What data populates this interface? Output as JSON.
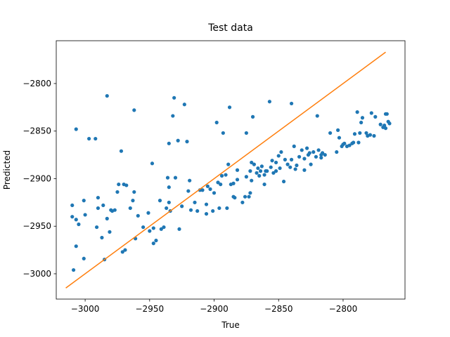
{
  "chart_data": {
    "type": "scatter",
    "title": "Test data",
    "xlabel": "True",
    "ylabel": "Predicted",
    "xlim": [
      -3022.4,
      -2752
    ],
    "ylim": [
      -3026.6,
      -2755
    ],
    "xticks": [
      {
        "value": -3000,
        "label": "−3000"
      },
      {
        "value": -2950,
        "label": "−2950"
      },
      {
        "value": -2900,
        "label": "−2900"
      },
      {
        "value": -2850,
        "label": "−2850"
      },
      {
        "value": -2800,
        "label": "−2800"
      }
    ],
    "yticks": [
      {
        "value": -3000,
        "label": "−3000"
      },
      {
        "value": -2950,
        "label": "−2950"
      },
      {
        "value": -2900,
        "label": "−2900"
      },
      {
        "value": -2850,
        "label": "−2850"
      },
      {
        "value": -2800,
        "label": "−2800"
      }
    ],
    "series": [
      {
        "type": "scatter",
        "color": "#1f77b4",
        "x": [
          -3010,
          -3010,
          -3009,
          -3007,
          -3007,
          -3007,
          -3005,
          -3001,
          -3001,
          -3000,
          -2997,
          -2992,
          -2991,
          -2990,
          -2990,
          -2987,
          -2986,
          -2985,
          -2983,
          -2983,
          -2981,
          -2980,
          -2979,
          -2977,
          -2975,
          -2974,
          -2972,
          -2971,
          -2970,
          -2969,
          -2968,
          -2965,
          -2963,
          -2962,
          -2962,
          -2961,
          -2959,
          -2955,
          -2951,
          -2950,
          -2948,
          -2947,
          -2947,
          -2945,
          -2942,
          -2941,
          -2939,
          -2937,
          -2936,
          -2935,
          -2935,
          -2935,
          -2934,
          -2932,
          -2931,
          -2930,
          -2928,
          -2927,
          -2925,
          -2923,
          -2921,
          -2920,
          -2919,
          -2918,
          -2915,
          -2913,
          -2911,
          -2909,
          -2906,
          -2906,
          -2905,
          -2903,
          -2901,
          -2900,
          -2898,
          -2897,
          -2896,
          -2895,
          -2894,
          -2893,
          -2891,
          -2890,
          -2889,
          -2888,
          -2887,
          -2885,
          -2885,
          -2884,
          -2882,
          -2882,
          -2878,
          -2876,
          -2875,
          -2875,
          -2873,
          -2872,
          -2872,
          -2871,
          -2871,
          -2870,
          -2869,
          -2867,
          -2866,
          -2865,
          -2864,
          -2863,
          -2861,
          -2861,
          -2860,
          -2859,
          -2857,
          -2856,
          -2855,
          -2854,
          -2852,
          -2852,
          -2850,
          -2849,
          -2848,
          -2846,
          -2845,
          -2843,
          -2841,
          -2840,
          -2840,
          -2838,
          -2837,
          -2836,
          -2834,
          -2832,
          -2830,
          -2830,
          -2828,
          -2827,
          -2826,
          -2825,
          -2823,
          -2821,
          -2820,
          -2819,
          -2817,
          -2817,
          -2816,
          -2814,
          -2810,
          -2805,
          -2804,
          -2803,
          -2801,
          -2800,
          -2799,
          -2797,
          -2795,
          -2793,
          -2792,
          -2791,
          -2789,
          -2788,
          -2787,
          -2786,
          -2785,
          -2782,
          -2781,
          -2779,
          -2778,
          -2776,
          -2775,
          -2771,
          -2769,
          -2768,
          -2767,
          -2767,
          -2766,
          -2765,
          -2764
        ],
        "y": [
          -2928,
          -2940,
          -2996,
          -2848,
          -2971,
          -2943,
          -2948,
          -2923,
          -2984,
          -2938,
          -2858,
          -2858,
          -2951,
          -2931,
          -2920,
          -2962,
          -2928,
          -2985,
          -2813,
          -2942,
          -2956,
          -2933,
          -2934,
          -2933,
          -2914,
          -2906,
          -2871,
          -2977,
          -2906,
          -2975,
          -2907,
          -2931,
          -2923,
          -2828,
          -2914,
          -2963,
          -2939,
          -2951,
          -2936,
          -2955,
          -2884,
          -2952,
          -2968,
          -2965,
          -2923,
          -2953,
          -2951,
          -2931,
          -2899,
          -2925,
          -2909,
          -2863,
          -2934,
          -2834,
          -2815,
          -2899,
          -2860,
          -2953,
          -2929,
          -2822,
          -2861,
          -2913,
          -2902,
          -2933,
          -2925,
          -2934,
          -2912,
          -2912,
          -2927,
          -2937,
          -2908,
          -2911,
          -2934,
          -2915,
          -2841,
          -2904,
          -2931,
          -2906,
          -2897,
          -2852,
          -2896,
          -2931,
          -2885,
          -2825,
          -2906,
          -2905,
          -2919,
          -2920,
          -2891,
          -2901,
          -2925,
          -2919,
          -2852,
          -2898,
          -2919,
          -2915,
          -2892,
          -2902,
          -2883,
          -2835,
          -2885,
          -2894,
          -2889,
          -2897,
          -2892,
          -2887,
          -2906,
          -2896,
          -2892,
          -2892,
          -2819,
          -2888,
          -2881,
          -2894,
          -2883,
          -2892,
          -2876,
          -2889,
          -2872,
          -2903,
          -2880,
          -2885,
          -2888,
          -2880,
          -2821,
          -2866,
          -2890,
          -2886,
          -2877,
          -2870,
          -2891,
          -2879,
          -2868,
          -2875,
          -2873,
          -2885,
          -2872,
          -2877,
          -2834,
          -2870,
          -2878,
          -2875,
          -2873,
          -2875,
          -2852,
          -2872,
          -2849,
          -2857,
          -2866,
          -2864,
          -2863,
          -2866,
          -2865,
          -2863,
          -2862,
          -2853,
          -2830,
          -2862,
          -2852,
          -2841,
          -2836,
          -2852,
          -2855,
          -2854,
          -2831,
          -2855,
          -2835,
          -2843,
          -2846,
          -2844,
          -2847,
          -2832,
          -2832,
          -2840,
          -2842
        ]
      },
      {
        "type": "line",
        "color": "#ff7f0e",
        "x": [
          -3015,
          -2767
        ],
        "y": [
          -3015,
          -2767
        ]
      }
    ]
  }
}
